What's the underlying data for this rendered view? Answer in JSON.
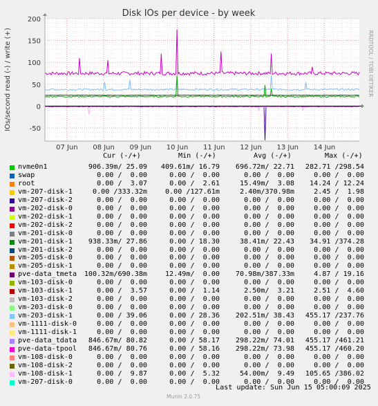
{
  "chart_data": {
    "type": "line",
    "title": "Disk IOs per device - by week",
    "ylabel": "IOs/second read (-) / write (+)",
    "watermark": "RRDTOOL / TOBI OETIKER",
    "x_ticks": [
      "07 Jun",
      "08 Jun",
      "09 Jun",
      "10 Jun",
      "11 Jun",
      "12 Jun",
      "13 Jun",
      "14 Jun"
    ],
    "y_ticks": [
      -50,
      0,
      50,
      100,
      150,
      200
    ],
    "ylim": [
      -80,
      200
    ],
    "grid": true,
    "series": [
      {
        "name": "pve-data_tdata",
        "color": "#cc00cc",
        "base": 75,
        "noise": 4,
        "spikes": [
          [
            0.42,
            175
          ],
          [
            0.56,
            125
          ],
          [
            0.72,
            120
          ],
          [
            0.37,
            120
          ],
          [
            0.11,
            110
          ],
          [
            0.2,
            105
          ],
          [
            0.85,
            90
          ]
        ]
      },
      {
        "name": "vm-203-disk-1",
        "color": "#7fbfff",
        "base": 38,
        "noise": 2,
        "spikes": [
          [
            0.42,
            55
          ],
          [
            0.72,
            70
          ],
          [
            0.27,
            60
          ],
          [
            0.83,
            55
          ],
          [
            0.19,
            55
          ]
        ]
      },
      {
        "name": "nvme0n1",
        "color": "#00aa00",
        "base": 22,
        "noise": 1.5,
        "spikes": [
          [
            0.42,
            70
          ],
          [
            0.7,
            48
          ],
          [
            0.72,
            40
          ]
        ]
      },
      {
        "name": "vm-201-disk-1",
        "color": "#006600",
        "base": 25,
        "noise": 0.5,
        "spikes": []
      },
      {
        "name": "vm-207-disk-1",
        "color": "#880000",
        "base": -1,
        "noise": 0.5,
        "spikes": []
      },
      {
        "name": "pve-data_tmeta",
        "color": "#330099",
        "base": -1,
        "noise": 0.3,
        "spikes": [
          [
            0.7,
            -78
          ]
        ]
      },
      {
        "name": "vm-108-disk-1",
        "color": "#ffaaff",
        "base": -2,
        "noise": 0.5,
        "spikes": [
          [
            0.14,
            -18
          ],
          [
            0.68,
            -10
          ],
          [
            0.82,
            -10
          ]
        ]
      }
    ]
  },
  "legend": {
    "headers": {
      "cur": "Cur (-/+)",
      "min": "Min (-/+)",
      "avg": "Avg (-/+)",
      "max": "Max (-/+)"
    },
    "rows": [
      {
        "name": "nvme0n1",
        "color": "#00cc00",
        "cur": "906.39m/ 25.09",
        "min": "409.61m/ 16.79",
        "avg": "696.72m/ 22.71",
        "max": "282.71 /298.54"
      },
      {
        "name": "swap",
        "color": "#0066b3",
        "cur": "0.00 /  0.00",
        "min": "0.00 /  0.00",
        "avg": "0.00 /  0.00",
        "max": "0.00 /  0.00"
      },
      {
        "name": "root",
        "color": "#ff8000",
        "cur": "0.00 /  3.07",
        "min": "0.00 /  2.61",
        "avg": "15.49m/  3.08",
        "max": "14.24 / 12.24"
      },
      {
        "name": "vm-207-disk-1",
        "color": "#ffcc00",
        "cur": "0.00 /333.32m",
        "min": "0.00 /127.61m",
        "avg": "2.40m/370.98m",
        "max": "2.45 /  1.98"
      },
      {
        "name": "vm-207-disk-2",
        "color": "#330099",
        "cur": "0.00 /  0.00",
        "min": "0.00 /  0.00",
        "avg": "0.00 /  0.00",
        "max": "0.00 /  0.00"
      },
      {
        "name": "vm-202-disk-0",
        "color": "#990099",
        "cur": "0.00 /  0.00",
        "min": "0.00 /  0.00",
        "avg": "0.00 /  0.00",
        "max": "0.00 /  0.00"
      },
      {
        "name": "vm-202-disk-1",
        "color": "#ccff00",
        "cur": "0.00 /  0.00",
        "min": "0.00 /  0.00",
        "avg": "0.00 /  0.00",
        "max": "0.00 /  0.00"
      },
      {
        "name": "vm-202-disk-2",
        "color": "#ff0000",
        "cur": "0.00 /  0.00",
        "min": "0.00 /  0.00",
        "avg": "0.00 /  0.00",
        "max": "0.00 /  0.00"
      },
      {
        "name": "vm-201-disk-0",
        "color": "#808080",
        "cur": "0.00 /  0.00",
        "min": "0.00 /  0.00",
        "avg": "0.00 /  0.00",
        "max": "0.00 /  0.00"
      },
      {
        "name": "vm-201-disk-1",
        "color": "#008f00",
        "cur": "938.33m/ 27.86",
        "min": "0.00 / 18.30",
        "avg": "38.41m/ 22.43",
        "max": "34.91 /374.28"
      },
      {
        "name": "vm-201-disk-2",
        "color": "#00487d",
        "cur": "0.00 /  0.00",
        "min": "0.00 /  0.00",
        "avg": "0.00 /  0.00",
        "max": "0.00 /  0.00"
      },
      {
        "name": "vm-205-disk-0",
        "color": "#b35a00",
        "cur": "0.00 /  0.00",
        "min": "0.00 /  0.00",
        "avg": "0.00 /  0.00",
        "max": "0.00 /  0.00"
      },
      {
        "name": "vm-205-disk-1",
        "color": "#b38f00",
        "cur": "0.00 /  0.00",
        "min": "0.00 /  0.00",
        "avg": "0.00 /  0.00",
        "max": "0.00 /  0.00"
      },
      {
        "name": "pve-data_tmeta",
        "color": "#6b006b",
        "cur": "100.32m/690.38m",
        "min": "12.49m/  0.00",
        "avg": "70.98m/387.33m",
        "max": "4.87 / 19.16"
      },
      {
        "name": "vm-103-disk-0",
        "color": "#8fb300",
        "cur": "0.00 /  0.00",
        "min": "0.00 /  0.00",
        "avg": "0.00 /  0.00",
        "max": "0.00 /  0.00"
      },
      {
        "name": "vm-103-disk-1",
        "color": "#b30000",
        "cur": "0.00 /  3.57",
        "min": "0.00 /  1.14",
        "avg": "2.50m/  3.21",
        "max": "2.51 /  4.60"
      },
      {
        "name": "vm-103-disk-2",
        "color": "#bebebe",
        "cur": "0.00 /  0.00",
        "min": "0.00 /  0.00",
        "avg": "0.00 /  0.00",
        "max": "0.00 /  0.00"
      },
      {
        "name": "vm-203-disk-0",
        "color": "#80ff80",
        "cur": "0.00 /  0.00",
        "min": "0.00 /  0.00",
        "avg": "0.00 /  0.00",
        "max": "0.00 /  0.00"
      },
      {
        "name": "vm-203-disk-1",
        "color": "#80c9ff",
        "cur": "0.00 / 39.06",
        "min": "0.00 / 28.36",
        "avg": "202.51m/ 38.43",
        "max": "455.17 /237.76"
      },
      {
        "name": "vm-1111-disk-0",
        "color": "#ffc080",
        "cur": "0.00 /  0.00",
        "min": "0.00 /  0.00",
        "avg": "0.00 /  0.00",
        "max": "0.00 /  0.00"
      },
      {
        "name": "vm-1111-disk-1",
        "color": "#ffe680",
        "cur": "0.00 /  0.00",
        "min": "0.00 /  0.00",
        "avg": "0.00 /  0.00",
        "max": "0.00 /  0.00"
      },
      {
        "name": "pve-data_tdata",
        "color": "#aa80ff",
        "cur": "846.67m/ 80.82",
        "min": "0.00 / 58.17",
        "avg": "298.22m/ 74.01",
        "max": "455.17 /461.21"
      },
      {
        "name": "pve-data-tpool",
        "color": "#ee00cc",
        "cur": "846.67m/ 80.76",
        "min": "0.00 / 58.16",
        "avg": "298.22m/ 73.98",
        "max": "455.17 /460.20"
      },
      {
        "name": "vm-108-disk-0",
        "color": "#ff8080",
        "cur": "0.00 /  0.00",
        "min": "0.00 /  0.00",
        "avg": "0.00 /  0.00",
        "max": "0.00 /  0.00"
      },
      {
        "name": "vm-108-disk-2",
        "color": "#666600",
        "cur": "0.00 /  0.00",
        "min": "0.00 /  0.00",
        "avg": "0.00 /  0.00",
        "max": "0.00 /  0.00"
      },
      {
        "name": "vm-108-disk-1",
        "color": "#ffbfff",
        "cur": "0.00 /  9.87",
        "min": "0.00 /  5.32",
        "avg": "54.00m/  9.49",
        "max": "105.65 /386.02"
      },
      {
        "name": "vm-207-disk-0",
        "color": "#00ffcc",
        "cur": "0.00 /  0.00",
        "min": "0.00 /  0.00",
        "avg": "0.00 /  0.00",
        "max": "0.00 /  0.00"
      }
    ]
  },
  "footer": {
    "last_update": "Last update: Sun Jun 15 05:00:09 2025",
    "munin_version": "Munin 2.0.75"
  }
}
